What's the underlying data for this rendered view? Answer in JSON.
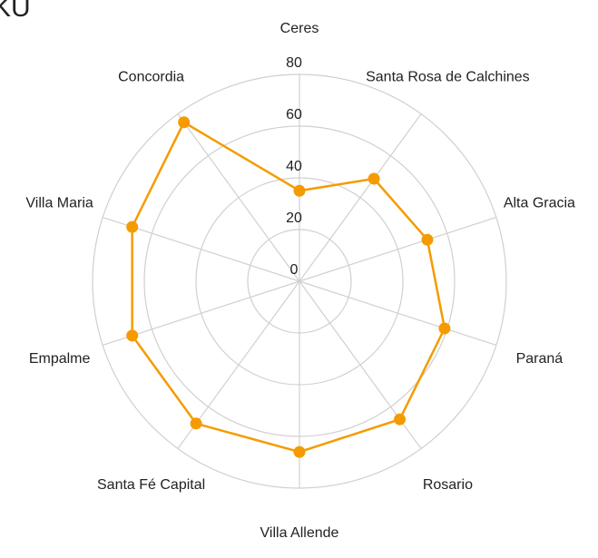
{
  "chart_data": {
    "type": "radar",
    "title": "KU",
    "categories": [
      "Ceres",
      "Santa Rosa de Calchines",
      "Alta Gracia",
      "Paraná",
      "Rosario",
      "Villa Allende",
      "Santa Fé Capital",
      "Empalme",
      "Villa Maria",
      "Concordia"
    ],
    "values": [
      35,
      49,
      52,
      59,
      66,
      66,
      68,
      68,
      68,
      76
    ],
    "color": "#f59b00",
    "rlim": [
      0,
      80
    ],
    "rticks": [
      0,
      20,
      40,
      60,
      80
    ],
    "grid": true
  }
}
